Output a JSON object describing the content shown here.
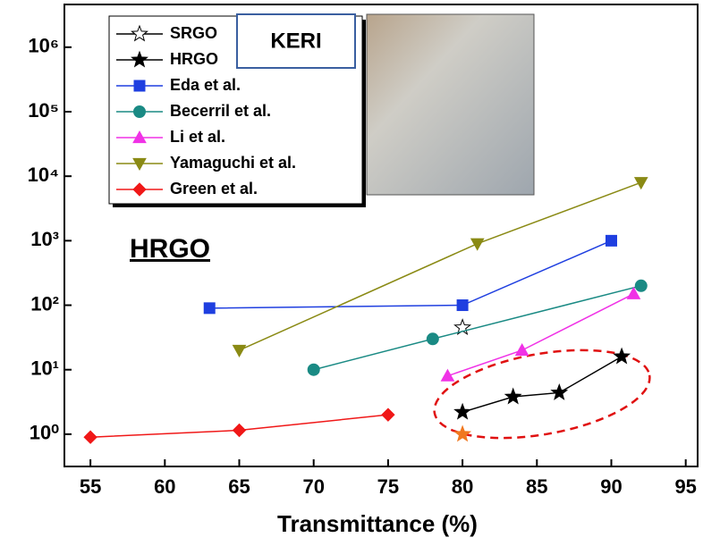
{
  "chart_data": {
    "type": "line",
    "x_label": "Transmittance (%)",
    "y_log": true,
    "xlim": [
      53.25,
      95.8
    ],
    "ylim": [
      0.316,
      4600000
    ],
    "xticks": [
      55,
      60,
      65,
      70,
      75,
      80,
      85,
      90,
      95
    ],
    "yticks": [
      {
        "value": 1,
        "label": "10⁰"
      },
      {
        "value": 10,
        "label": "10¹"
      },
      {
        "value": 100,
        "label": "10²"
      },
      {
        "value": 1000,
        "label": "10³"
      },
      {
        "value": 10000,
        "label": "10⁴"
      },
      {
        "value": 100000,
        "label": "10⁵"
      },
      {
        "value": 1000000,
        "label": "10⁶"
      }
    ],
    "series": [
      {
        "name": "SRGO",
        "color": "#000000",
        "marker": "star-open",
        "x": [
          80
        ],
        "values": [
          45
        ]
      },
      {
        "name": "HRGO",
        "color": "#000000",
        "marker": "star",
        "x": [
          80,
          83.4,
          86.5,
          90.7
        ],
        "values": [
          2.2,
          3.8,
          4.4,
          16
        ]
      },
      {
        "name": "Eda et al.",
        "color": "#1f3fe0",
        "marker": "square",
        "x": [
          63,
          80,
          90
        ],
        "values": [
          90,
          100,
          1000
        ]
      },
      {
        "name": "Becerril et al.",
        "color": "#1a8a84",
        "marker": "circle",
        "x": [
          70,
          78,
          92
        ],
        "values": [
          10,
          30,
          200
        ]
      },
      {
        "name": "Li et al.",
        "color": "#f032e6",
        "marker": "triangle",
        "x": [
          79,
          84,
          91.5
        ],
        "values": [
          8,
          20,
          150
        ]
      },
      {
        "name": "Yamaguchi et al.",
        "color": "#8a8a14",
        "marker": "triangle-down",
        "x": [
          65,
          81,
          92
        ],
        "values": [
          20,
          900,
          8000
        ]
      },
      {
        "name": "Green et al.",
        "color": "#f01818",
        "marker": "diamond",
        "x": [
          55,
          65,
          75
        ],
        "values": [
          0.9,
          1.15,
          2
        ]
      },
      {
        "color": "#f07820",
        "marker": "star",
        "x": [
          80
        ],
        "values": [
          1
        ]
      }
    ],
    "annotations": [
      "HRGO",
      "KERI"
    ]
  }
}
